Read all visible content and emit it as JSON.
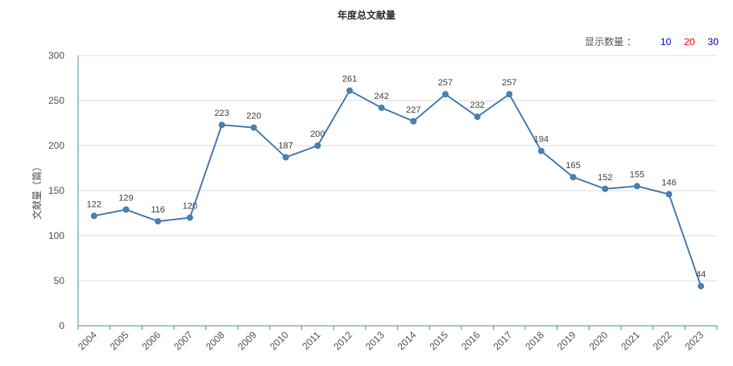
{
  "header": {
    "title": "年度总文献量"
  },
  "display_count": {
    "label": "显示数量 ：",
    "options": [
      {
        "label": "10",
        "color": "#0000ff"
      },
      {
        "label": "20",
        "color": "#ff0000"
      },
      {
        "label": "30",
        "color": "#0000aa"
      }
    ]
  },
  "colors": {
    "line": "#4a7fb0",
    "axis": "#4e8fa3",
    "grid": "#dddddd"
  },
  "chart_data": {
    "type": "line",
    "title": "年度总文献量",
    "xlabel": "",
    "ylabel": "文献量（篇）",
    "ylim": [
      0,
      300
    ],
    "yticks": [
      0,
      50,
      100,
      150,
      200,
      250,
      300
    ],
    "grid": true,
    "categories": [
      "2004",
      "2005",
      "2006",
      "2007",
      "2008",
      "2009",
      "2010",
      "2011",
      "2012",
      "2013",
      "2014",
      "2015",
      "2016",
      "2017",
      "2018",
      "2019",
      "2020",
      "2021",
      "2022",
      "2023"
    ],
    "series": [
      {
        "values": [
          122,
          129,
          116,
          120,
          223,
          220,
          187,
          200,
          261,
          242,
          227,
          257,
          232,
          257,
          194,
          165,
          152,
          155,
          146,
          44
        ]
      }
    ]
  }
}
